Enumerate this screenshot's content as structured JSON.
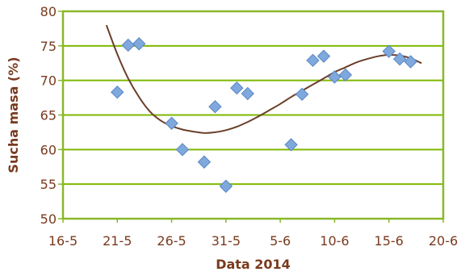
{
  "chart_data": {
    "type": "scatter",
    "title": "",
    "xlabel": "Data 2014",
    "ylabel": "Sucha masa (%)",
    "x_ticks": [
      "16-5",
      "21-5",
      "26-5",
      "31-5",
      "5-6",
      "10-6",
      "15-6",
      "20-6"
    ],
    "y_ticks": [
      "50",
      "55",
      "60",
      "65",
      "70",
      "75",
      "80"
    ],
    "xlim": [
      "2014-05-16",
      "2014-06-20"
    ],
    "ylim": [
      50,
      80
    ],
    "grid": "horizontal",
    "legend": "none",
    "series": [
      {
        "marker": "diamond",
        "points": [
          {
            "x": "2014-05-21",
            "y": 68.3
          },
          {
            "x": "2014-05-22",
            "y": 75.1
          },
          {
            "x": "2014-05-23",
            "y": 75.3
          },
          {
            "x": "2014-05-26",
            "y": 63.8
          },
          {
            "x": "2014-05-27",
            "y": 60.0
          },
          {
            "x": "2014-05-29",
            "y": 58.2
          },
          {
            "x": "2014-05-30",
            "y": 66.2
          },
          {
            "x": "2014-05-31",
            "y": 54.7
          },
          {
            "x": "2014-06-01",
            "y": 68.9
          },
          {
            "x": "2014-06-02",
            "y": 68.1
          },
          {
            "x": "2014-06-06",
            "y": 60.7
          },
          {
            "x": "2014-06-07",
            "y": 68.0
          },
          {
            "x": "2014-06-08",
            "y": 72.9
          },
          {
            "x": "2014-06-09",
            "y": 73.5
          },
          {
            "x": "2014-06-10",
            "y": 70.5
          },
          {
            "x": "2014-06-11",
            "y": 70.8
          },
          {
            "x": "2014-06-15",
            "y": 74.2
          },
          {
            "x": "2014-06-16",
            "y": 73.1
          },
          {
            "x": "2014-06-17",
            "y": 72.7
          }
        ]
      }
    ],
    "trendline": {
      "type": "polynomial",
      "points": [
        {
          "x": "2014-05-20",
          "y": 78.0
        },
        {
          "x": "2014-05-21",
          "y": 73.8
        },
        {
          "x": "2014-05-22",
          "y": 70.3
        },
        {
          "x": "2014-05-23",
          "y": 67.6
        },
        {
          "x": "2014-05-24",
          "y": 65.5
        },
        {
          "x": "2014-05-25",
          "y": 64.2
        },
        {
          "x": "2014-05-26",
          "y": 63.4
        },
        {
          "x": "2014-05-27",
          "y": 62.9
        },
        {
          "x": "2014-05-28",
          "y": 62.6
        },
        {
          "x": "2014-05-29",
          "y": 62.4
        },
        {
          "x": "2014-05-30",
          "y": 62.5
        },
        {
          "x": "2014-05-31",
          "y": 62.8
        },
        {
          "x": "2014-06-01",
          "y": 63.3
        },
        {
          "x": "2014-06-02",
          "y": 64.0
        },
        {
          "x": "2014-06-03",
          "y": 64.8
        },
        {
          "x": "2014-06-04",
          "y": 65.7
        },
        {
          "x": "2014-06-05",
          "y": 66.6
        },
        {
          "x": "2014-06-06",
          "y": 67.6
        },
        {
          "x": "2014-06-07",
          "y": 68.5
        },
        {
          "x": "2014-06-08",
          "y": 69.4
        },
        {
          "x": "2014-06-09",
          "y": 70.3
        },
        {
          "x": "2014-06-10",
          "y": 71.2
        },
        {
          "x": "2014-06-11",
          "y": 71.9
        },
        {
          "x": "2014-06-12",
          "y": 72.6
        },
        {
          "x": "2014-06-13",
          "y": 73.1
        },
        {
          "x": "2014-06-14",
          "y": 73.5
        },
        {
          "x": "2014-06-15",
          "y": 73.7
        },
        {
          "x": "2014-06-16",
          "y": 73.6
        },
        {
          "x": "2014-06-17",
          "y": 73.2
        },
        {
          "x": "2014-06-18",
          "y": 72.5
        }
      ]
    },
    "colors": {
      "marker_fill": "#7fa8dd",
      "marker_stroke": "#5a86c5",
      "trendline": "#6b3f2a",
      "gridline": "#7fb800",
      "plot_border": "#8ab82a",
      "text": "#7a3a1e"
    }
  }
}
